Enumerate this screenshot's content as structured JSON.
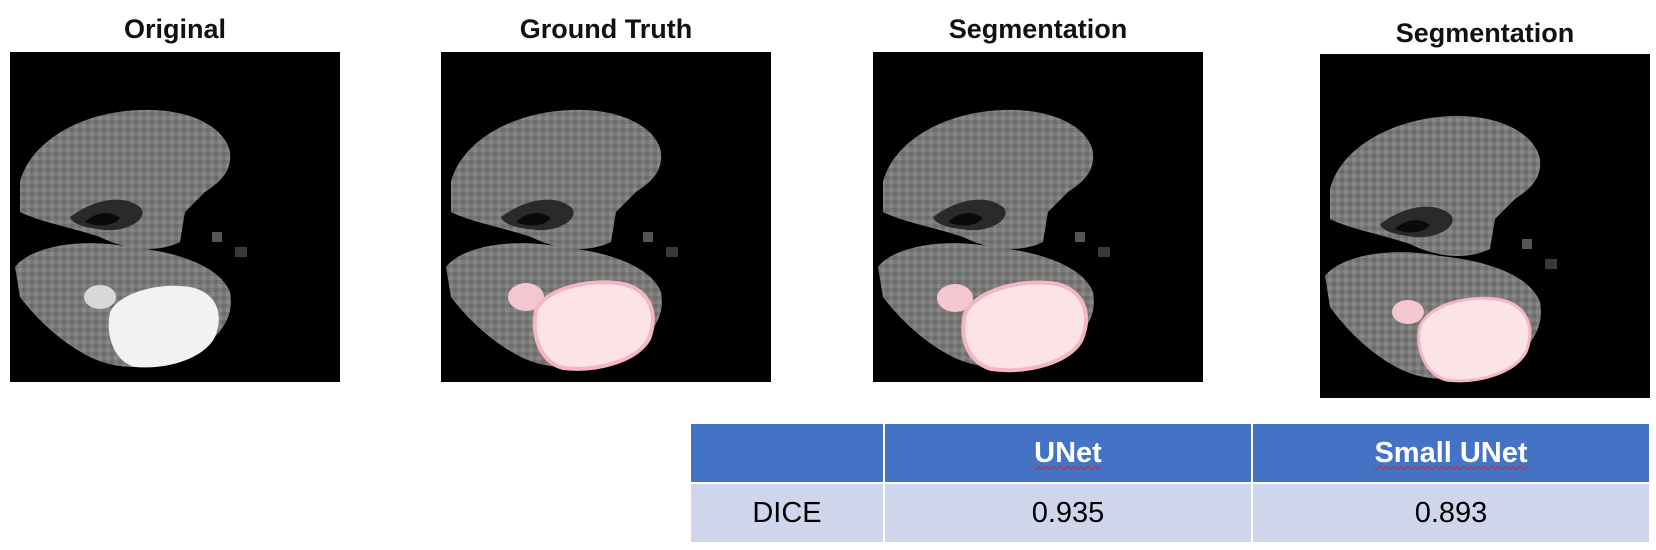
{
  "panels": [
    {
      "title": "Original",
      "overlay": false
    },
    {
      "title": "Ground Truth",
      "overlay": true
    },
    {
      "title": "Segmentation",
      "overlay": true
    },
    {
      "title": "Segmentation",
      "overlay": true
    }
  ],
  "overlay_color": "#f4b6c2",
  "table": {
    "headers": [
      "",
      "UNet",
      "Small UNet"
    ],
    "rows": [
      {
        "label": "DICE",
        "values": [
          "0.935",
          "0.893"
        ]
      }
    ],
    "header_color": "#4472c4",
    "row_color": "#cfd5ea"
  }
}
